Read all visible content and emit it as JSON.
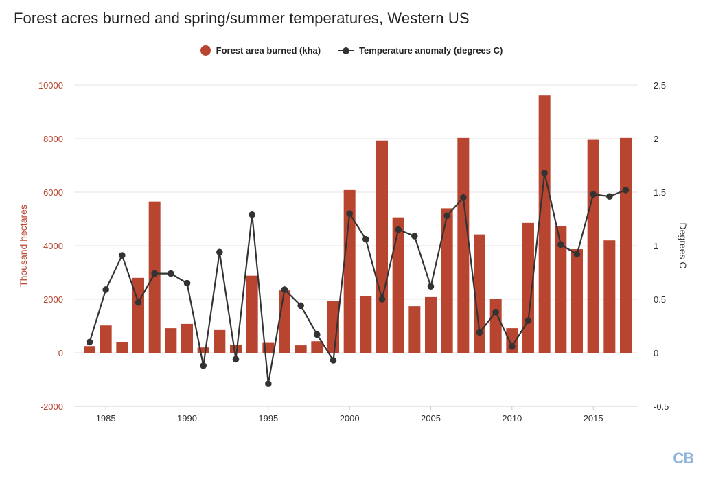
{
  "chart_data": {
    "type": "bar+line",
    "title": "Forest acres burned and spring/summer temperatures, Western US",
    "legend": [
      "Forest area burned (kha)",
      "Temperature anomaly (degrees C)"
    ],
    "legend_position": "top-center",
    "x": [
      1984,
      1985,
      1986,
      1987,
      1988,
      1989,
      1990,
      1991,
      1992,
      1993,
      1994,
      1995,
      1996,
      1997,
      1998,
      1999,
      2000,
      2001,
      2002,
      2003,
      2004,
      2005,
      2006,
      2007,
      2008,
      2009,
      2010,
      2011,
      2012,
      2013,
      2014,
      2015,
      2016,
      2017
    ],
    "xticks": [
      1985,
      1990,
      1995,
      2000,
      2005,
      2010,
      2015
    ],
    "series": [
      {
        "name": "Forest area burned (kha)",
        "type": "bar",
        "axis": "left",
        "color": "#b84530",
        "values": [
          250,
          1020,
          400,
          2800,
          5650,
          920,
          1080,
          200,
          850,
          300,
          2880,
          370,
          2330,
          280,
          430,
          1930,
          6080,
          2120,
          7930,
          5060,
          1740,
          2080,
          5400,
          8030,
          4420,
          2020,
          920,
          4850,
          9610,
          4740,
          3870,
          7960,
          4200,
          8030
        ]
      },
      {
        "name": "Temperature anomaly (degrees C)",
        "type": "line",
        "axis": "right",
        "color": "#333333",
        "values": [
          0.1,
          0.59,
          0.91,
          0.47,
          0.74,
          0.74,
          0.65,
          -0.12,
          0.94,
          -0.06,
          1.29,
          -0.29,
          0.59,
          0.44,
          0.17,
          -0.07,
          1.3,
          1.06,
          0.5,
          1.15,
          1.09,
          0.62,
          1.28,
          1.45,
          0.19,
          0.38,
          0.06,
          0.3,
          1.68,
          1.01,
          0.92,
          1.48,
          1.46,
          1.52
        ]
      }
    ],
    "ylabel_left": "Thousand hectares",
    "ylim_left": [
      -2000,
      10000
    ],
    "yticks_left": [
      -2000,
      0,
      2000,
      4000,
      6000,
      8000,
      10000
    ],
    "ylabel_right": "Degrees C",
    "ylim_right": [
      -0.5,
      2.5
    ],
    "yticks_right": [
      "-0.5",
      "0",
      "0.5",
      "1",
      "1.5",
      "2",
      "2.5"
    ],
    "grid": true
  },
  "colors": {
    "left_axis_text": "#b84530",
    "bar": "#b84530",
    "line": "#333333",
    "grid": "#e3e3e3"
  },
  "logo_text": "CB"
}
